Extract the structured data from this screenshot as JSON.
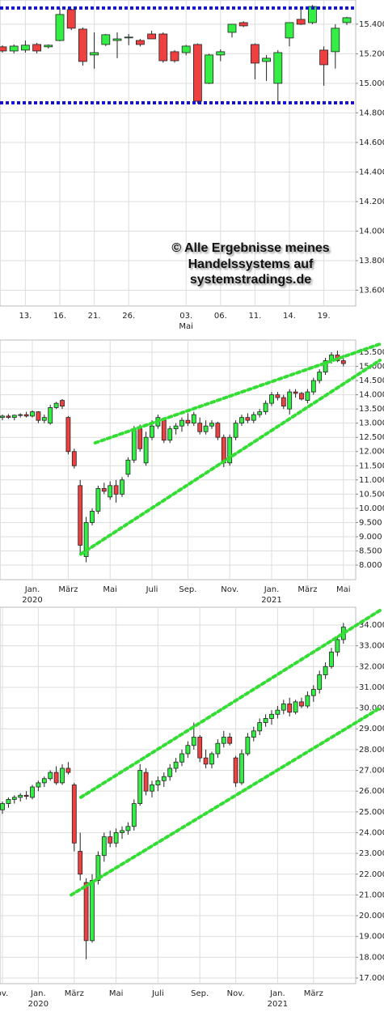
{
  "chart_data": [
    {
      "type": "candlestick",
      "up_color": "#33ee44",
      "down_color": "#ee4040",
      "grid": true,
      "categories": [
        null,
        null,
        "13.",
        null,
        null,
        "16.",
        null,
        null,
        "21.",
        null,
        null,
        "26.",
        null,
        null,
        null,
        null,
        "03.",
        null,
        null,
        "06.",
        null,
        null,
        "11.",
        null,
        null,
        "14.",
        null,
        null,
        "19.",
        null,
        null
      ],
      "x_sublabels": [
        null,
        null,
        null,
        null,
        null,
        null,
        null,
        null,
        null,
        null,
        null,
        null,
        null,
        null,
        null,
        null,
        "Mai",
        null,
        null,
        null,
        null,
        null,
        null,
        null,
        null,
        null,
        null,
        null,
        null,
        null,
        null
      ],
      "open": [
        15247,
        15219,
        15225,
        15263,
        15247,
        15290,
        15499,
        15367,
        15192,
        15263,
        15290,
        15312,
        15290,
        15334,
        15334,
        15214,
        15208,
        15263,
        15000,
        15192,
        15345,
        15411,
        15263,
        15148,
        15000,
        15307,
        15433,
        15411,
        15225,
        15214,
        15411
      ],
      "high": [
        15258,
        15263,
        15290,
        15274,
        15263,
        15510,
        15505,
        15378,
        15345,
        15334,
        15345,
        15334,
        15300,
        15356,
        15345,
        15225,
        15260,
        15270,
        15200,
        15230,
        15400,
        15420,
        15270,
        15192,
        15225,
        15411,
        15499,
        15530,
        15250,
        15400,
        15450
      ],
      "low": [
        15208,
        15203,
        15208,
        15203,
        15236,
        15285,
        15360,
        15120,
        15099,
        15252,
        15170,
        15258,
        15250,
        15320,
        15140,
        15140,
        15190,
        14863,
        14995,
        15150,
        15310,
        15380,
        15027,
        15016,
        14863,
        15250,
        15395,
        15400,
        14984,
        15100,
        15395
      ],
      "close": [
        15219,
        15252,
        15258,
        15219,
        15258,
        15466,
        15373,
        15148,
        15208,
        15329,
        15301,
        15313,
        15263,
        15301,
        15153,
        15153,
        15252,
        14879,
        15192,
        15214,
        15400,
        15389,
        15137,
        15170,
        15208,
        15411,
        15400,
        15520,
        15126,
        15373,
        15444
      ],
      "ylim": [
        13493,
        15564
      ],
      "yticks": [
        {
          "value": 13600,
          "label": "13.600"
        },
        {
          "value": 13800,
          "label": "13.800"
        },
        {
          "value": 14000,
          "label": "14.000"
        },
        {
          "value": 14200,
          "label": "14.200"
        },
        {
          "value": 14400,
          "label": "14.400"
        },
        {
          "value": 14600,
          "label": "14.600"
        },
        {
          "value": 14800,
          "label": "14.800"
        },
        {
          "value": 15000,
          "label": "15.000"
        },
        {
          "value": 15200,
          "label": "15.200"
        },
        {
          "value": 15400,
          "label": "15.400"
        }
      ],
      "hlines": [
        15510,
        14868
      ],
      "hline_color": "#1414cc",
      "annotation": [
        "© Alle Ergebnisse meines",
        "Handelssystems auf",
        "systemstradings.de"
      ]
    },
    {
      "type": "candlestick",
      "up_color": "#33ee44",
      "down_color": "#ee4040",
      "grid": true,
      "categories": [
        null,
        null,
        null,
        null,
        null,
        "Jan.",
        null,
        null,
        null,
        null,
        null,
        "März",
        null,
        null,
        null,
        null,
        null,
        null,
        "Mai",
        null,
        null,
        null,
        null,
        null,
        null,
        "Juli",
        null,
        null,
        null,
        null,
        null,
        "Sep.",
        null,
        null,
        null,
        null,
        null,
        null,
        "Nov.",
        null,
        null,
        null,
        null,
        null,
        null,
        "Jan.",
        null,
        null,
        null,
        null,
        null,
        "März",
        null,
        null,
        null,
        null,
        null,
        "Mai"
      ],
      "x_sublabels": [
        null,
        null,
        null,
        null,
        null,
        "2020",
        null,
        null,
        null,
        null,
        null,
        null,
        null,
        null,
        null,
        null,
        null,
        null,
        null,
        null,
        null,
        null,
        null,
        null,
        null,
        null,
        null,
        null,
        null,
        null,
        null,
        null,
        null,
        null,
        null,
        null,
        null,
        null,
        null,
        null,
        null,
        null,
        null,
        null,
        null,
        "2021",
        null,
        null,
        null,
        null,
        null,
        null,
        null,
        null,
        null,
        null,
        null,
        null
      ],
      "open": [
        13200,
        13250,
        13200,
        13280,
        13300,
        13250,
        13400,
        13100,
        13000,
        13550,
        13800,
        13200,
        12000,
        10800,
        8300,
        9500,
        9900,
        10700,
        10400,
        10800,
        10500,
        11200,
        11700,
        12800,
        11600,
        12500,
        12900,
        13100,
        12400,
        12800,
        12900,
        13100,
        13000,
        13000,
        12700,
        12900,
        13000,
        12500,
        11600,
        12500,
        13000,
        13200,
        13100,
        13300,
        13400,
        13700,
        14000,
        13900,
        13500,
        14100,
        14050,
        13800,
        14100,
        14500,
        14800,
        15200,
        15400,
        15200
      ],
      "high": [
        13300,
        13320,
        13300,
        13350,
        13400,
        13450,
        13420,
        13300,
        13650,
        13750,
        13850,
        13250,
        12100,
        11000,
        9700,
        10000,
        10800,
        10900,
        10950,
        11000,
        11100,
        11800,
        12900,
        12950,
        12700,
        13100,
        13300,
        13200,
        12900,
        13000,
        13200,
        13350,
        13400,
        13200,
        13100,
        13100,
        13050,
        12600,
        12600,
        13100,
        13300,
        13350,
        13400,
        13500,
        13800,
        14100,
        14100,
        14000,
        14200,
        14200,
        14100,
        14200,
        14600,
        14900,
        15300,
        15500,
        15550,
        15400
      ],
      "low": [
        13100,
        13150,
        13100,
        13200,
        13200,
        13200,
        13000,
        13000,
        12950,
        13500,
        13500,
        11900,
        11400,
        8400,
        8100,
        9400,
        9800,
        10500,
        10300,
        10200,
        10400,
        11100,
        11600,
        12000,
        11500,
        12400,
        12800,
        12300,
        12300,
        12600,
        12700,
        12900,
        12900,
        12600,
        12600,
        12800,
        12400,
        11450,
        11500,
        12400,
        12900,
        13000,
        13000,
        13200,
        13300,
        13600,
        13800,
        13500,
        13300,
        13900,
        13800,
        13700,
        14000,
        14400,
        14700,
        15100,
        15150,
        15000
      ],
      "close": [
        13250,
        13200,
        13280,
        13300,
        13250,
        13400,
        13100,
        13200,
        13550,
        13700,
        13600,
        12000,
        11500,
        8700,
        9500,
        9900,
        10700,
        10600,
        10800,
        10500,
        11000,
        11700,
        12800,
        12100,
        12500,
        12900,
        13200,
        12400,
        12800,
        12900,
        13100,
        13000,
        13300,
        12700,
        12900,
        13000,
        12500,
        11600,
        12500,
        13000,
        13200,
        13100,
        13300,
        13400,
        13700,
        14000,
        13900,
        13600,
        14100,
        14050,
        13850,
        14100,
        14500,
        14800,
        15200,
        15400,
        15200,
        15100
      ],
      "ylim": [
        7487,
        15928
      ],
      "yticks": [
        {
          "value": 8000,
          "label": "8.000"
        },
        {
          "value": 8500,
          "label": "8.500"
        },
        {
          "value": 9000,
          "label": "9.000"
        },
        {
          "value": 9500,
          "label": "9.500"
        },
        {
          "value": 10000,
          "label": "10.000"
        },
        {
          "value": 10500,
          "label": "10.500"
        },
        {
          "value": 11000,
          "label": "11.000"
        },
        {
          "value": 11500,
          "label": "11.500"
        },
        {
          "value": 12000,
          "label": "12.000"
        },
        {
          "value": 12500,
          "label": "12.500"
        },
        {
          "value": 13000,
          "label": "13.000"
        },
        {
          "value": 13500,
          "label": "13.500"
        },
        {
          "value": 14000,
          "label": "14.000"
        },
        {
          "value": 14500,
          "label": "14.500"
        },
        {
          "value": 15000,
          "label": "15.000"
        },
        {
          "value": 15500,
          "label": "15.500"
        }
      ],
      "trendline_color": "#33dd33",
      "trendlines": [
        {
          "x": [
            15.5,
            63.1
          ],
          "y": [
            12306,
            15785
          ]
        },
        {
          "x": [
            13.1,
            63.1
          ],
          "y": [
            8386,
            15215
          ]
        }
      ]
    },
    {
      "type": "candlestick",
      "up_color": "#33ee44",
      "down_color": "#ee4040",
      "grid": true,
      "categories": [
        "ov.",
        null,
        null,
        null,
        null,
        null,
        "Jan.",
        null,
        null,
        null,
        null,
        null,
        "März",
        null,
        null,
        null,
        null,
        null,
        null,
        "Mai",
        null,
        null,
        null,
        null,
        null,
        null,
        "Juli",
        null,
        null,
        null,
        null,
        null,
        null,
        "Sep.",
        null,
        null,
        null,
        null,
        null,
        "Nov.",
        null,
        null,
        null,
        null,
        null,
        null,
        "Jan.",
        null,
        null,
        null,
        null,
        null,
        "März",
        null,
        null,
        null,
        null,
        null
      ],
      "x_sublabels": [
        null,
        null,
        null,
        null,
        null,
        null,
        "2020",
        null,
        null,
        null,
        null,
        null,
        null,
        null,
        null,
        null,
        null,
        null,
        null,
        null,
        null,
        null,
        null,
        null,
        null,
        null,
        null,
        null,
        null,
        null,
        null,
        null,
        null,
        null,
        null,
        null,
        null,
        null,
        null,
        null,
        null,
        null,
        null,
        null,
        null,
        null,
        "2021",
        null,
        null,
        null,
        null,
        null,
        null,
        null,
        null,
        null,
        null,
        null
      ],
      "open": [
        25100,
        25400,
        25600,
        25700,
        25800,
        25700,
        26200,
        26400,
        26600,
        26900,
        26400,
        27100,
        26300,
        23100,
        21600,
        18800,
        21700,
        22900,
        23800,
        23500,
        24000,
        24100,
        24300,
        25400,
        26900,
        26000,
        26300,
        26500,
        26700,
        27100,
        27400,
        27800,
        28200,
        28600,
        27600,
        27300,
        27800,
        28300,
        28600,
        27600,
        26400,
        27800,
        28600,
        28900,
        29300,
        29500,
        29700,
        29900,
        30200,
        29800,
        30300,
        30100,
        30600,
        30900,
        31600,
        32000,
        32700,
        33300
      ],
      "high": [
        25500,
        25700,
        25800,
        25900,
        26000,
        26300,
        26500,
        26700,
        27000,
        27200,
        27300,
        27400,
        26400,
        24000,
        21800,
        22000,
        23100,
        24000,
        24100,
        24200,
        24300,
        24500,
        25600,
        27300,
        27100,
        26500,
        26700,
        26900,
        27300,
        27600,
        28000,
        28400,
        29300,
        28700,
        28000,
        27900,
        28500,
        28900,
        28800,
        27700,
        28000,
        28800,
        29100,
        29500,
        29700,
        29900,
        30100,
        30400,
        30500,
        30400,
        30500,
        30800,
        31100,
        31800,
        32200,
        32900,
        33500,
        34100
      ],
      "low": [
        24900,
        25200,
        25400,
        25500,
        25600,
        25600,
        26000,
        26200,
        26500,
        26300,
        26300,
        26800,
        23100,
        21700,
        17900,
        18700,
        21500,
        22600,
        23300,
        23300,
        23700,
        23900,
        24100,
        25300,
        25800,
        25700,
        26000,
        26200,
        26500,
        26900,
        27200,
        27600,
        28000,
        27400,
        27100,
        27100,
        27600,
        28100,
        28200,
        26200,
        26300,
        27700,
        28400,
        28700,
        29100,
        29200,
        29500,
        29700,
        29600,
        29700,
        30000,
        30000,
        30300,
        30700,
        31400,
        31900,
        32500,
        33100
      ],
      "close": [
        25400,
        25600,
        25700,
        25800,
        25750,
        26200,
        26400,
        26600,
        26900,
        26400,
        27100,
        26900,
        23500,
        22000,
        18800,
        21700,
        22900,
        23800,
        23500,
        24000,
        24100,
        24300,
        25400,
        27000,
        26000,
        26300,
        26500,
        26700,
        27100,
        27400,
        27800,
        28200,
        28600,
        27600,
        27300,
        27800,
        28300,
        28600,
        28300,
        26400,
        27800,
        28600,
        28900,
        29300,
        29500,
        29700,
        29900,
        30200,
        29800,
        30300,
        30100,
        30600,
        30900,
        31600,
        32000,
        32700,
        33300,
        33900
      ],
      "ylim": [
        16727,
        34858
      ],
      "yticks": [
        {
          "value": 17000,
          "label": "17.000"
        },
        {
          "value": 18000,
          "label": "18.000"
        },
        {
          "value": 19000,
          "label": "19.000"
        },
        {
          "value": 20000,
          "label": "20.000"
        },
        {
          "value": 21000,
          "label": "21.000"
        },
        {
          "value": 22000,
          "label": "22.000"
        },
        {
          "value": 23000,
          "label": "23.000"
        },
        {
          "value": 24000,
          "label": "24.000"
        },
        {
          "value": 25000,
          "label": "25.000"
        },
        {
          "value": 26000,
          "label": "26.000"
        },
        {
          "value": 27000,
          "label": "27.000"
        },
        {
          "value": 28000,
          "label": "28.000"
        },
        {
          "value": 29000,
          "label": "29.000"
        },
        {
          "value": 30000,
          "label": "30.000"
        },
        {
          "value": 31000,
          "label": "31.000"
        },
        {
          "value": 32000,
          "label": "32.000"
        },
        {
          "value": 33000,
          "label": "33.000"
        },
        {
          "value": 34000,
          "label": "34.000"
        }
      ],
      "trendline_color": "#33dd33",
      "trendlines": [
        {
          "x": [
            13.1,
            63.1
          ],
          "y": [
            25700,
            34700
          ]
        },
        {
          "x": [
            11.5,
            63.1
          ],
          "y": [
            21000,
            30000
          ]
        }
      ]
    }
  ]
}
